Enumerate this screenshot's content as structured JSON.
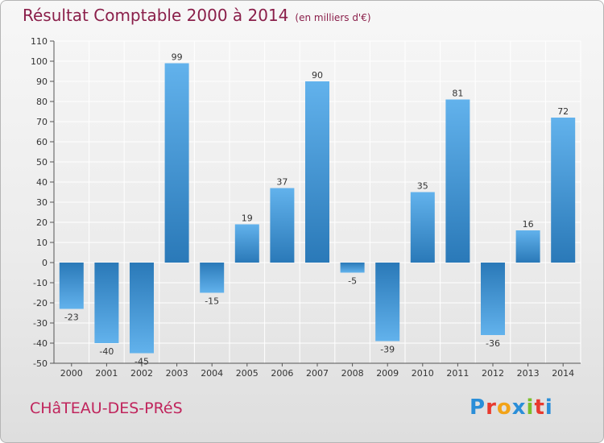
{
  "header": {
    "title": "Résultat Comptable 2000 à 2014",
    "subtitle": "(en milliers d'€)"
  },
  "footer": {
    "commune": "CHâTEAU-DES-PRéS"
  },
  "logo": {
    "letters": [
      "P",
      "r",
      "o",
      "x",
      "i",
      "t",
      "i"
    ],
    "colors": [
      "#2a8ed8",
      "#e83a2e",
      "#f2a318",
      "#2a8ed8",
      "#7bbf2a",
      "#e83a2e",
      "#2a8ed8"
    ]
  },
  "colors": {
    "bar_light": "#62b2ec",
    "bar_dark": "#2a79b8",
    "grid": "#ffffff",
    "axis": "#555555",
    "title": "#8a1f4a",
    "commune": "#c0245c"
  },
  "chart_data": {
    "type": "bar",
    "title": "Résultat Comptable 2000 à 2014",
    "subtitle": "(en milliers d'€)",
    "categories": [
      "2000",
      "2001",
      "2002",
      "2003",
      "2004",
      "2005",
      "2006",
      "2007",
      "2008",
      "2009",
      "2010",
      "2011",
      "2012",
      "2013",
      "2014"
    ],
    "values": [
      -23,
      -40,
      -45,
      99,
      -15,
      19,
      37,
      90,
      -5,
      -39,
      35,
      81,
      -36,
      16,
      72
    ],
    "ylim": [
      -50,
      110
    ],
    "yticks": [
      -50,
      -40,
      -30,
      -20,
      -10,
      0,
      10,
      20,
      30,
      40,
      50,
      60,
      70,
      80,
      90,
      100,
      110
    ],
    "grid": true,
    "legend": "none"
  }
}
